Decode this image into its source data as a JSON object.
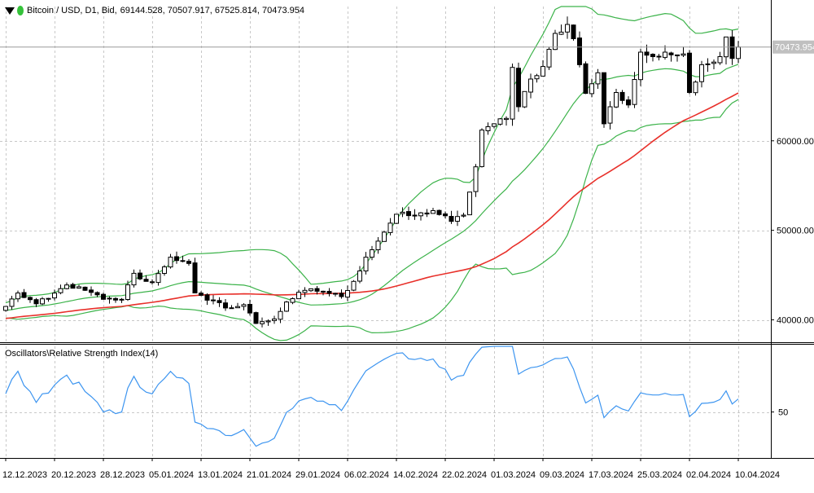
{
  "header": {
    "symbol": "Bitcoin / USD, D1, Bid,",
    "ohlc": "69144.528, 70507.917, 67525.814, 70473.954"
  },
  "colors": {
    "bull_fill": "#ffffff",
    "bear_fill": "#000000",
    "candle_outline": "#000000",
    "bollinger": "#3cb34a",
    "moving_average": "#e8302a",
    "rsi": "#3d95f0",
    "grid": "#c8c8c8",
    "axis": "#000000",
    "price_tag_bg": "#c0c0c0",
    "price_tag_text": "#ffffff"
  },
  "chart_data": [
    {
      "type": "candlestick",
      "panel": "price",
      "current_price_tag": "70473.954",
      "ylim": [
        37500,
        75000
      ],
      "grid": true,
      "y_ticks": [
        {
          "value": 40000,
          "label": "40000.000"
        },
        {
          "value": 50000,
          "label": "50000.000"
        },
        {
          "value": 60000,
          "label": "60000.000"
        }
      ],
      "x_ticks": [
        "12.12.2023",
        "20.12.2023",
        "28.12.2023",
        "05.01.2024",
        "13.01.2024",
        "21.01.2024",
        "29.01.2024",
        "06.02.2024",
        "14.02.2024",
        "22.02.2024",
        "01.03.2024",
        "09.03.2024",
        "17.03.2024",
        "25.03.2024",
        "02.04.2024",
        "10.04.2024"
      ],
      "x_start": "2023-12-12",
      "close_anchors": [
        [
          "2023-12-12",
          41500
        ],
        [
          "2023-12-14",
          43000
        ],
        [
          "2023-12-17",
          41800
        ],
        [
          "2023-12-19",
          42400
        ],
        [
          "2023-12-22",
          43900
        ],
        [
          "2023-12-25",
          43300
        ],
        [
          "2023-12-28",
          42300
        ],
        [
          "2023-12-31",
          42300
        ],
        [
          "2024-01-02",
          45200
        ],
        [
          "2024-01-04",
          44300
        ],
        [
          "2024-01-05",
          44200
        ],
        [
          "2024-01-08",
          47000
        ],
        [
          "2024-01-10",
          46600
        ],
        [
          "2024-01-11",
          46300
        ],
        [
          "2024-01-12",
          43000
        ],
        [
          "2024-01-14",
          42200
        ],
        [
          "2024-01-18",
          41300
        ],
        [
          "2024-01-20",
          41700
        ],
        [
          "2024-01-22",
          39600
        ],
        [
          "2024-01-23",
          39800
        ],
        [
          "2024-01-25",
          40100
        ],
        [
          "2024-01-27",
          42000
        ],
        [
          "2024-01-30",
          43300
        ],
        [
          "2024-02-02",
          43200
        ],
        [
          "2024-02-05",
          42600
        ],
        [
          "2024-02-07",
          44300
        ],
        [
          "2024-02-09",
          47000
        ],
        [
          "2024-02-12",
          49800
        ],
        [
          "2024-02-14",
          51800
        ],
        [
          "2024-02-17",
          51600
        ],
        [
          "2024-02-20",
          52200
        ],
        [
          "2024-02-23",
          51000
        ],
        [
          "2024-02-25",
          51700
        ],
        [
          "2024-02-27",
          57100
        ],
        [
          "2024-02-28",
          61200
        ],
        [
          "2024-03-01",
          61900
        ],
        [
          "2024-03-03",
          62500
        ],
        [
          "2024-03-04",
          68200
        ],
        [
          "2024-03-05",
          63800
        ],
        [
          "2024-03-07",
          66900
        ],
        [
          "2024-03-09",
          68300
        ],
        [
          "2024-03-11",
          72000
        ],
        [
          "2024-03-13",
          73000
        ],
        [
          "2024-03-14",
          71400
        ],
        [
          "2024-03-16",
          65300
        ],
        [
          "2024-03-18",
          67600
        ],
        [
          "2024-03-19",
          61900
        ],
        [
          "2024-03-21",
          65400
        ],
        [
          "2024-03-23",
          64000
        ],
        [
          "2024-03-25",
          69900
        ],
        [
          "2024-03-27",
          69400
        ],
        [
          "2024-03-30",
          69600
        ],
        [
          "2024-04-01",
          69700
        ],
        [
          "2024-04-02",
          65400
        ],
        [
          "2024-04-04",
          68500
        ],
        [
          "2024-04-07",
          69400
        ],
        [
          "2024-04-08",
          71600
        ],
        [
          "2024-04-09",
          69200
        ],
        [
          "2024-04-10",
          70474
        ]
      ],
      "indicators": [
        {
          "kind": "bollinger_bands",
          "period": 20,
          "stddev": 2
        },
        {
          "kind": "moving_average",
          "period": 50
        }
      ]
    },
    {
      "type": "line",
      "panel": "rsi",
      "title": "Oscillators\\Relative Strength Index(14)",
      "period": 14,
      "ylim": [
        22,
        90
      ],
      "y_ticks": [
        {
          "value": 50,
          "label": "50"
        }
      ]
    }
  ]
}
